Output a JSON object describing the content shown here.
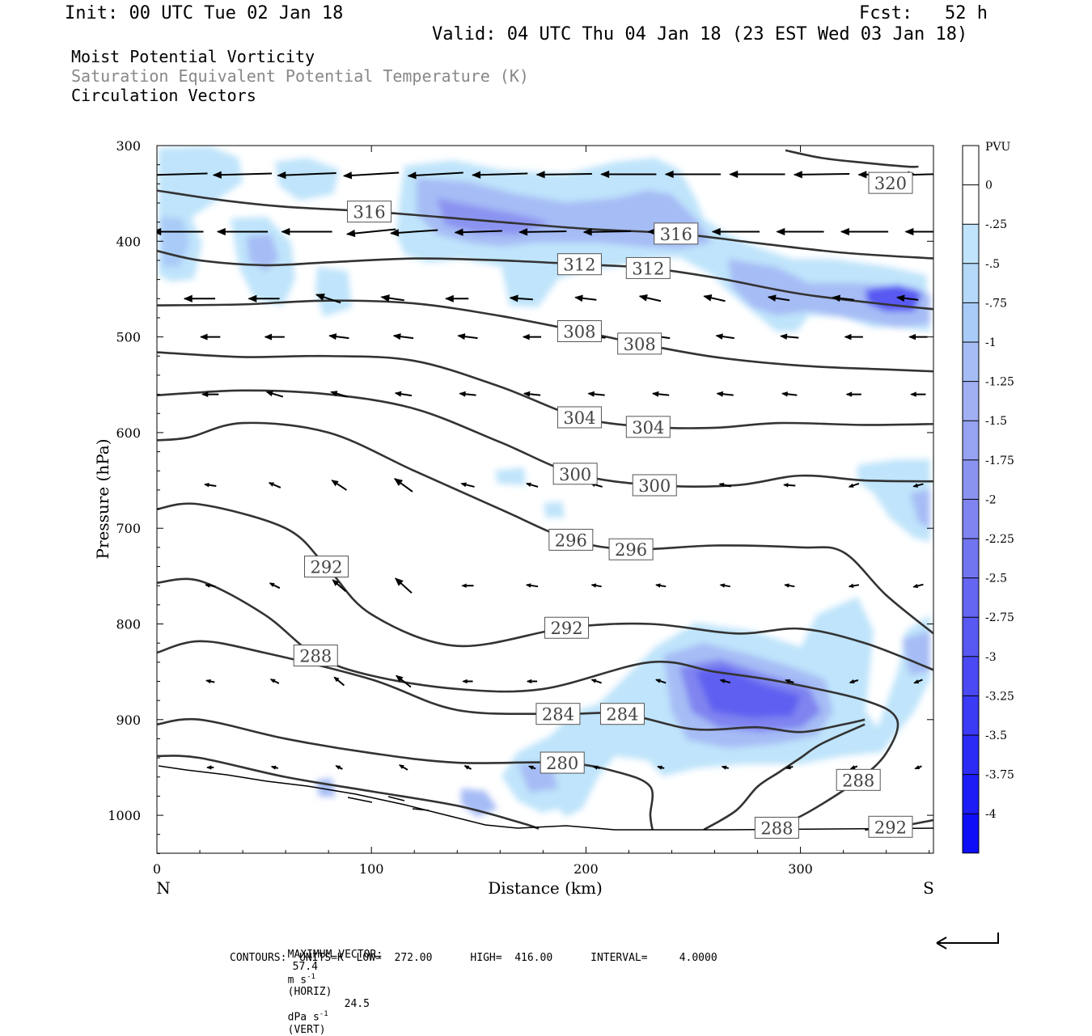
{
  "header": {
    "init": "Init: 00 UTC Tue 02 Jan 18",
    "fcst": "Fcst:   52 h",
    "valid": "Valid: 04 UTC Thu 04 Jan 18 (23 EST Wed 03 Jan 18)",
    "field1": "Moist Potential Vorticity",
    "field2": "Saturation Equivalent Potential Temperature (K)",
    "field3": "Circulation Vectors"
  },
  "footer": {
    "max_vector_label": "MAXIMUM VECTOR:",
    "horiz_value": "57.4",
    "horiz_unit": "m s",
    "horiz_tag": "(HORIZ)",
    "vert_value": "24.5",
    "vert_unit": "dPa s",
    "vert_tag": "(VERT)",
    "exp": "-1",
    "contours": "CONTOURS:  UNITS=K  LOW=  272.00      HIGH=  416.00      INTERVAL=     4.0000"
  },
  "colors": {
    "contour": "#333333",
    "shade_light": "#bfe4fb",
    "shade_mid": "#a6b8f4",
    "shade_dark": "#6f7bf0",
    "shade_darkest": "#2a3cf5"
  },
  "chart_data": {
    "type": "contour",
    "xlabel": "Distance (km)",
    "ylabel": "Pressure (hPa)",
    "xlim": [
      0,
      362
    ],
    "ylim": [
      1040,
      300
    ],
    "x_ticks": [
      0,
      100,
      200,
      300
    ],
    "y_ticks": [
      300,
      400,
      500,
      600,
      700,
      800,
      900,
      1000
    ],
    "x_end_labels": {
      "left": "N",
      "right": "S"
    },
    "colorbar": {
      "unit": "PVU",
      "labels": [
        "0",
        "-.25",
        "-.5",
        "-.75",
        "-1",
        "-1.25",
        "-1.5",
        "-1.75",
        "-2",
        "-2.25",
        "-2.5",
        "-2.75",
        "-3",
        "-3.25",
        "-3.5",
        "-3.75",
        "-4"
      ],
      "colors": [
        "#ffffff",
        "#ffffff",
        "#bfe4fb",
        "#b4d9f9",
        "#a9cbf7",
        "#a6bcf5",
        "#a0b0f3",
        "#96a2f2",
        "#8b93f1",
        "#7f84f0",
        "#7275f0",
        "#6566f1",
        "#5858f2",
        "#4a49f3",
        "#3b3af4",
        "#2c2bf5",
        "#1d1cf6",
        "#0f0ef8"
      ]
    },
    "contour_labels": [
      {
        "text": "320",
        "x": 342,
        "p": 339
      },
      {
        "text": "316",
        "x": 99,
        "p": 369
      },
      {
        "text": "316",
        "x": 242,
        "p": 392
      },
      {
        "text": "312",
        "x": 197,
        "p": 424
      },
      {
        "text": "312",
        "x": 229,
        "p": 428
      },
      {
        "text": "308",
        "x": 197,
        "p": 494
      },
      {
        "text": "308",
        "x": 225,
        "p": 507
      },
      {
        "text": "304",
        "x": 197,
        "p": 584
      },
      {
        "text": "304",
        "x": 229,
        "p": 594
      },
      {
        "text": "300",
        "x": 195,
        "p": 643
      },
      {
        "text": "300",
        "x": 232,
        "p": 655
      },
      {
        "text": "296",
        "x": 193,
        "p": 712
      },
      {
        "text": "296",
        "x": 221,
        "p": 722
      },
      {
        "text": "292",
        "x": 79,
        "p": 740
      },
      {
        "text": "292",
        "x": 191,
        "p": 804
      },
      {
        "text": "288",
        "x": 74,
        "p": 833
      },
      {
        "text": "284",
        "x": 187,
        "p": 894
      },
      {
        "text": "284",
        "x": 217,
        "p": 894
      },
      {
        "text": "280",
        "x": 189,
        "p": 945
      },
      {
        "text": "288",
        "x": 327,
        "p": 963
      },
      {
        "text": "288",
        "x": 289,
        "p": 1013
      },
      {
        "text": "292",
        "x": 342,
        "p": 1012
      }
    ],
    "contours": [
      {
        "level": 320,
        "points": [
          [
            293,
            305
          ],
          [
            310,
            313
          ],
          [
            330,
            318
          ],
          [
            350,
            322
          ],
          [
            355,
            322
          ]
        ]
      },
      {
        "level": 316,
        "points": [
          [
            0,
            347
          ],
          [
            30,
            357
          ],
          [
            60,
            364
          ],
          [
            100,
            369
          ],
          [
            150,
            378
          ],
          [
            200,
            387
          ],
          [
            242,
            392
          ],
          [
            280,
            402
          ],
          [
            320,
            412
          ],
          [
            362,
            418
          ]
        ]
      },
      {
        "level": 312,
        "points": [
          [
            0,
            410
          ],
          [
            20,
            420
          ],
          [
            50,
            425
          ],
          [
            80,
            422
          ],
          [
            120,
            418
          ],
          [
            160,
            420
          ],
          [
            197,
            424
          ],
          [
            229,
            428
          ],
          [
            260,
            438
          ],
          [
            300,
            455
          ],
          [
            340,
            466
          ],
          [
            362,
            471
          ]
        ]
      },
      {
        "level": 308,
        "points": [
          [
            0,
            467
          ],
          [
            40,
            466
          ],
          [
            80,
            462
          ],
          [
            120,
            465
          ],
          [
            160,
            478
          ],
          [
            197,
            494
          ],
          [
            225,
            507
          ],
          [
            260,
            521
          ],
          [
            300,
            530
          ],
          [
            340,
            534
          ],
          [
            362,
            536
          ]
        ]
      },
      {
        "level": 304,
        "points": [
          [
            0,
            516
          ],
          [
            40,
            521
          ],
          [
            80,
            520
          ],
          [
            120,
            525
          ],
          [
            160,
            552
          ],
          [
            197,
            584
          ],
          [
            229,
            594
          ],
          [
            260,
            595
          ],
          [
            290,
            590
          ],
          [
            330,
            592
          ],
          [
            362,
            591
          ]
        ]
      },
      {
        "level": 300,
        "points": [
          [
            0,
            561
          ],
          [
            40,
            556
          ],
          [
            80,
            560
          ],
          [
            120,
            575
          ],
          [
            160,
            610
          ],
          [
            195,
            643
          ],
          [
            232,
            655
          ],
          [
            270,
            655
          ],
          [
            300,
            645
          ],
          [
            330,
            650
          ],
          [
            362,
            651
          ]
        ]
      },
      {
        "level": 296,
        "points": [
          [
            0,
            608
          ],
          [
            15,
            605
          ],
          [
            40,
            590
          ],
          [
            80,
            600
          ],
          [
            120,
            640
          ],
          [
            160,
            680
          ],
          [
            193,
            712
          ],
          [
            221,
            722
          ],
          [
            260,
            718
          ],
          [
            300,
            720
          ],
          [
            320,
            725
          ],
          [
            340,
            770
          ],
          [
            362,
            810
          ]
        ]
      },
      {
        "level": 292,
        "points": [
          [
            0,
            680
          ],
          [
            20,
            675
          ],
          [
            60,
            700
          ],
          [
            79,
            740
          ],
          [
            100,
            790
          ],
          [
            140,
            823
          ],
          [
            191,
            804
          ],
          [
            230,
            800
          ],
          [
            270,
            810
          ],
          [
            300,
            805
          ],
          [
            330,
            820
          ],
          [
            362,
            848
          ]
        ]
      },
      {
        "level": 288,
        "points": [
          [
            0,
            757
          ],
          [
            20,
            755
          ],
          [
            50,
            790
          ],
          [
            74,
            833
          ],
          [
            100,
            854
          ],
          [
            140,
            868
          ],
          [
            180,
            868
          ],
          [
            230,
            840
          ],
          [
            260,
            850
          ],
          [
            290,
            860
          ],
          [
            330,
            880
          ],
          [
            345,
            900
          ],
          [
            340,
            935
          ],
          [
            327,
            963
          ],
          [
            305,
            995
          ],
          [
            289,
            1013
          ]
        ]
      },
      {
        "level": 284,
        "points": [
          [
            0,
            830
          ],
          [
            20,
            818
          ],
          [
            50,
            830
          ],
          [
            100,
            858
          ],
          [
            140,
            890
          ],
          [
            187,
            894
          ],
          [
            217,
            894
          ],
          [
            250,
            910
          ],
          [
            280,
            908
          ],
          [
            300,
            913
          ],
          [
            320,
            905
          ],
          [
            330,
            900
          ]
        ]
      },
      {
        "level": 280,
        "points": [
          [
            0,
            905
          ],
          [
            20,
            900
          ],
          [
            60,
            920
          ],
          [
            100,
            935
          ],
          [
            140,
            945
          ],
          [
            189,
            945
          ],
          [
            215,
            955
          ],
          [
            230,
            970
          ],
          [
            230,
            1000
          ],
          [
            231,
            1015
          ]
        ]
      },
      {
        "level": 276,
        "points": [
          [
            0,
            938
          ],
          [
            20,
            940
          ],
          [
            60,
            960
          ],
          [
            100,
            975
          ],
          [
            140,
            990
          ],
          [
            170,
            1008
          ],
          [
            178,
            1014
          ]
        ]
      },
      {
        "level": 292,
        "points": [
          [
            255,
            1015
          ],
          [
            270,
            995
          ],
          [
            280,
            970
          ],
          [
            290,
            955
          ],
          [
            300,
            940
          ],
          [
            310,
            925
          ],
          [
            330,
            905
          ]
        ]
      },
      {
        "level": 292,
        "points": [
          [
            330,
            1015
          ],
          [
            345,
            1012
          ],
          [
            362,
            1005
          ]
        ]
      }
    ]
  }
}
